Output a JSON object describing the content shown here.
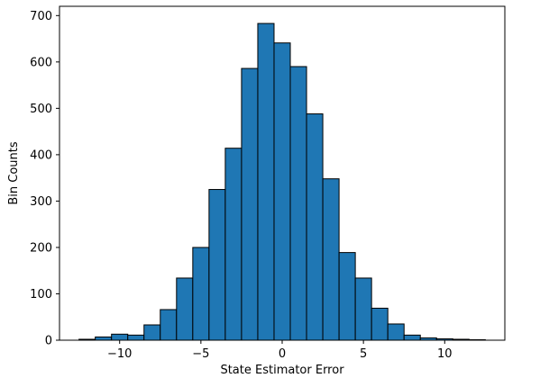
{
  "chart_data": {
    "type": "bar",
    "title": "",
    "xlabel": "State Estimator Error",
    "ylabel": "Bin Counts",
    "xlim": [
      -13.7,
      13.7
    ],
    "ylim": [
      0,
      720
    ],
    "bin_edges": [
      -12.5,
      -11.5,
      -10.5,
      -9.5,
      -8.5,
      -7.5,
      -6.5,
      -5.5,
      -4.5,
      -3.5,
      -2.5,
      -1.5,
      -0.5,
      0.5,
      1.5,
      2.5,
      3.5,
      4.5,
      5.5,
      6.5,
      7.5,
      8.5,
      9.5,
      10.5,
      11.5,
      12.5
    ],
    "values": [
      2,
      7,
      13,
      11,
      33,
      66,
      134,
      200,
      325,
      414,
      586,
      683,
      641,
      590,
      488,
      348,
      189,
      134,
      69,
      35,
      11,
      5,
      3,
      2,
      1
    ],
    "x_ticks": [
      -10,
      -5,
      0,
      5,
      10
    ],
    "x_tick_labels": [
      "−10",
      "−5",
      "0",
      "5",
      "10"
    ],
    "y_ticks": [
      0,
      100,
      200,
      300,
      400,
      500,
      600,
      700
    ],
    "y_tick_labels": [
      "0",
      "100",
      "200",
      "300",
      "400",
      "500",
      "600",
      "700"
    ],
    "bar_color": "#1f77b4",
    "edge_color": "#000000",
    "grid": false,
    "legend": "none"
  }
}
